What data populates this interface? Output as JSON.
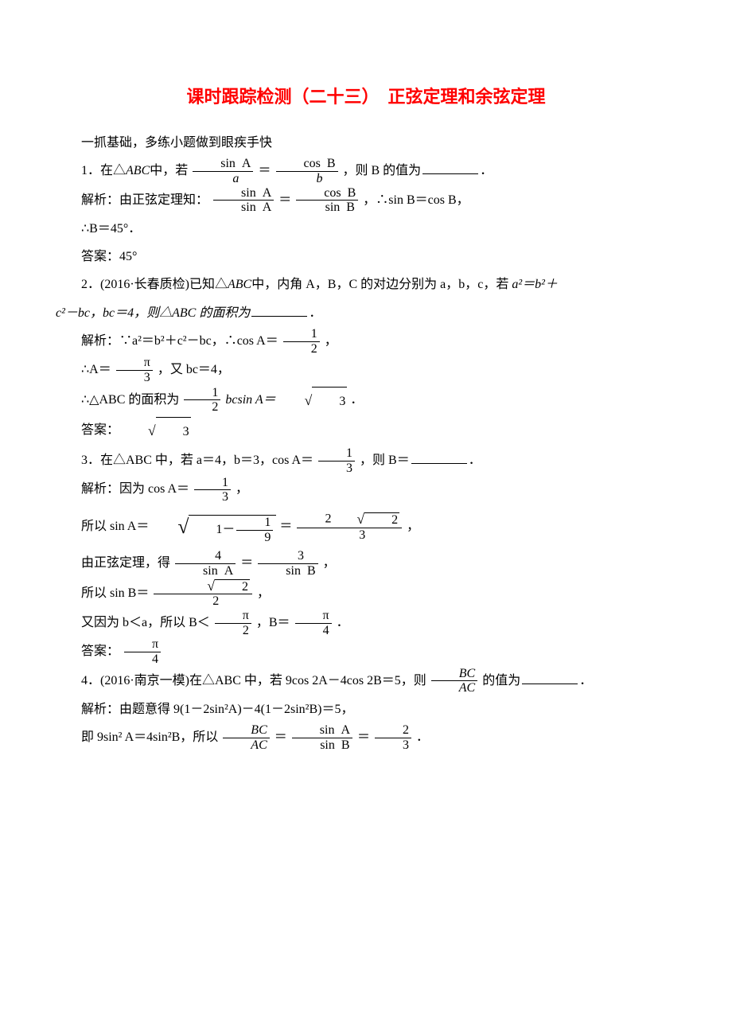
{
  "colors": {
    "title": "#ff0000",
    "text": "#000000",
    "bg": "#ffffff"
  },
  "fonts": {
    "body": "SimSun",
    "title": "SimHei",
    "body_size": 16,
    "title_size": 22
  },
  "title": "课时跟踪检测（二十三）　正弦定理和余弦定理",
  "subtitle": "一抓基础，多练小题做到眼疾手快",
  "q1": {
    "prefix": "1．在△",
    "abc": "ABC",
    "mid1": "中，若",
    "f1_num": "sin  A",
    "f1_den": "a",
    "eq": "＝",
    "f2_num": "cos  B",
    "f2_den": "b",
    "tail": "，则 B 的值为",
    "period": "．",
    "sol_label": "解析：由正弦定理知：",
    "sf1_num": "sin  A",
    "sf1_den": "sin  A",
    "sf2_num": "cos  B",
    "sf2_den": "sin  B",
    "sol_tail": "，∴sin B＝cos B，",
    "sol2": "∴B＝45°．",
    "ans": "答案：45°"
  },
  "q2": {
    "line1_a": "2．(2016·长春质检)已知△",
    "abc": "ABC",
    "line1_b": "中，内角 A，B，C 的对边分别为 a，b，c，若 ",
    "eqn": "a²＝b²＋",
    "line2": "c²－bc，bc＝4，则△ABC 的面积为",
    "period": "．",
    "sol1_a": "解析：∵a²＝b²＋c²－bc，∴cos A＝",
    "sol1_num": "1",
    "sol1_den": "2",
    "sol1_tail": "，",
    "sol2_a": "∴A＝",
    "sol2_num": "π",
    "sol2_den": "3",
    "sol2_b": "，又 bc＝4，",
    "sol3_a": "∴△ABC 的面积为",
    "sol3_num": "1",
    "sol3_den": "2",
    "sol3_b": "bcsin A＝",
    "sol3_rad": "3",
    "sol3_tail": "．",
    "ans_a": "答案：",
    "ans_rad": "3"
  },
  "q3": {
    "line1_a": "3．在△ABC 中，若 a＝4，b＝3，cos A＝",
    "f_num": "1",
    "f_den": "3",
    "line1_b": "，则 B＝",
    "period": "．",
    "s1_a": "解析：因为 cos A＝",
    "s1_num": "1",
    "s1_den": "3",
    "s1_tail": "，",
    "s2_a": "所以 sin A＝ ",
    "s2_rad_inner_a": "1－",
    "s2_rad_num": "1",
    "s2_rad_den": "9",
    "s2_mid": "＝",
    "s2_r_num_a": "2",
    "s2_r_num_rad": "2",
    "s2_r_den": "3",
    "s2_tail": "，",
    "s3_a": "由正弦定理，得",
    "s3_f1_num": "4",
    "s3_f1_den": "sin  A",
    "s3_eq": "＝",
    "s3_f2_num": "3",
    "s3_f2_den": "sin  B",
    "s3_tail": "，",
    "s4_a": "所以 sin B＝",
    "s4_num_rad": "2",
    "s4_den": "2",
    "s4_tail": "，",
    "s5_a": "又因为 b＜a，所以 B＜",
    "s5_f1_num": "π",
    "s5_f1_den": "2",
    "s5_mid": "，B＝",
    "s5_f2_num": "π",
    "s5_f2_den": "4",
    "s5_tail": "．",
    "ans_a": "答案：",
    "ans_num": "π",
    "ans_den": "4"
  },
  "q4": {
    "line1_a": "4．(2016·南京一模)在△ABC 中，若 9cos 2A－4cos 2B＝5，则",
    "f_num": "BC",
    "f_den": "AC",
    "line1_b": "的值为",
    "period": "．",
    "s1": "解析：由题意得 9(1－2sin²A)－4(1－2sin²B)＝5，",
    "s2_a": "即 9sin² A＝4sin²B，所以",
    "s2_f1_num": "BC",
    "s2_f1_den": "AC",
    "s2_eq1": "＝",
    "s2_f2_num": "sin  A",
    "s2_f2_den": "sin  B",
    "s2_eq2": "＝",
    "s2_f3_num": "2",
    "s2_f3_den": "3",
    "s2_tail": "．"
  }
}
